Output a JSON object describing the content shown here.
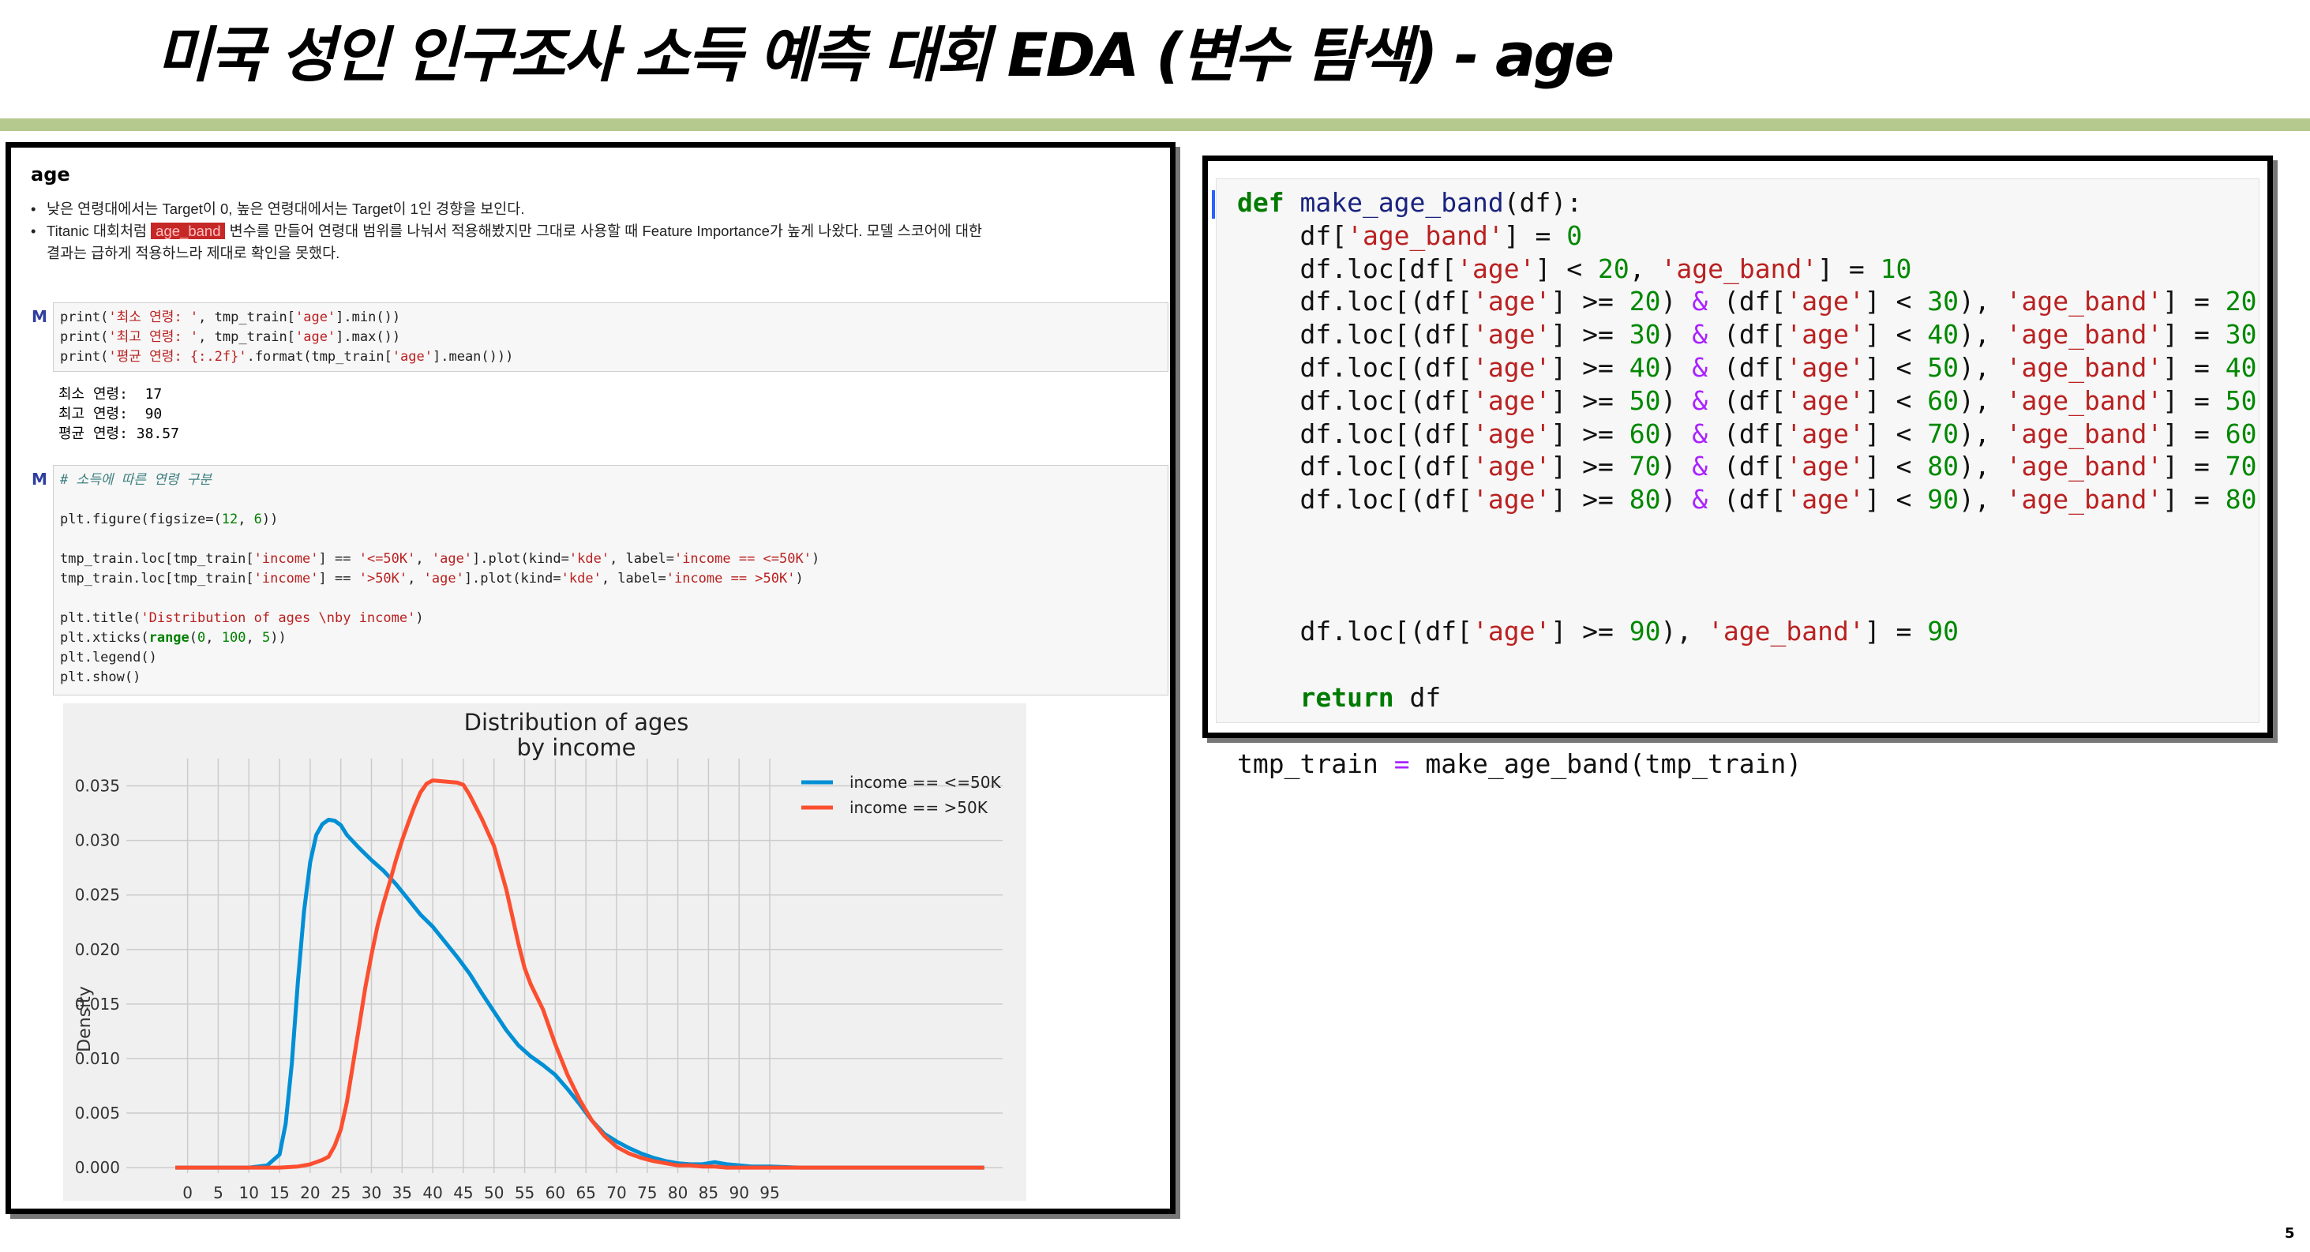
{
  "slide": {
    "title": "미국 성인 인구조사 소득 예측 대회 EDA (변수 탐색) - age",
    "page_number": "5",
    "accent_color": "#b5c98f"
  },
  "notebook": {
    "heading": "age",
    "bullets": {
      "b1": "낮은 연령대에서는 Target이 0, 높은 연령대에서는 Target이 1인 경향을 보인다.",
      "b2_pre": "Titanic 대회처럼 ",
      "b2_tag": "age_band",
      "b2_post": " 변수를 만들어 연령대 범위를 나눠서 적용해봤지만 그대로 사용할 때 Feature Importance가 높게 나왔다. 모델 스코어에 대한",
      "b2_cont": "결과는 급하게 적용하느라 제대로 확인을 못했다."
    },
    "cell1": {
      "prompt": "M",
      "l1_a": "print(",
      "l1_s": "'최소 연령: '",
      "l1_b": ", tmp_train[",
      "l1_k": "'age'",
      "l1_c": "].min())",
      "l2_a": "print(",
      "l2_s": "'최고 연령: '",
      "l2_b": ", tmp_train[",
      "l2_k": "'age'",
      "l2_c": "].max())",
      "l3_a": "print(",
      "l3_s": "'평균 연령: {:.2f}'",
      "l3_b": ".format(tmp_train[",
      "l3_k": "'age'",
      "l3_c": "].mean()))"
    },
    "output1": {
      "l1": "최소 연령:  17",
      "l2": "최고 연령:  90",
      "l3": "평균 연령: 38.57"
    },
    "cell2": {
      "prompt": "M",
      "comment": "# 소득에 따른 연령 구분",
      "fig_a": "plt.figure(figsize=(",
      "fig_n1": "12",
      "fig_b": ", ",
      "fig_n2": "6",
      "fig_c": "))",
      "loc1_a": "tmp_train.loc[tmp_train[",
      "loc1_s1": "'income'",
      "loc1_b": "] == ",
      "loc1_s2": "'<=50K'",
      "loc1_c": ", ",
      "loc1_s3": "'age'",
      "loc1_d": "].plot(kind=",
      "loc1_s4": "'kde'",
      "loc1_e": ", label=",
      "loc1_s5": "'income == <=50K'",
      "loc1_f": ")",
      "loc2_a": "tmp_train.loc[tmp_train[",
      "loc2_s1": "'income'",
      "loc2_b": "] == ",
      "loc2_s2": "'>50K'",
      "loc2_c": ", ",
      "loc2_s3": "'age'",
      "loc2_d": "].plot(kind=",
      "loc2_s4": "'kde'",
      "loc2_e": ", label=",
      "loc2_s5": "'income == >50K'",
      "loc2_f": ")",
      "title_a": "plt.title(",
      "title_s": "'Distribution of ages \\nby income'",
      "title_b": ")",
      "xt_a": "plt.xticks(",
      "xt_kw": "range",
      "xt_b": "(",
      "xt_n1": "0",
      "xt_c": ", ",
      "xt_n2": "100",
      "xt_d": ", ",
      "xt_n3": "5",
      "xt_e": "))",
      "legend": "plt.legend()",
      "show": "plt.show()"
    }
  },
  "chart_data": {
    "type": "line",
    "title": "Distribution of ages\nby income",
    "title_line1": "Distribution of ages",
    "title_line2": "by income",
    "ylabel": "Density",
    "xlim": [
      -10,
      133
    ],
    "ylim": [
      -0.0005,
      0.0375
    ],
    "xticks": [
      0,
      5,
      10,
      15,
      20,
      25,
      30,
      35,
      40,
      45,
      50,
      55,
      60,
      65,
      70,
      75,
      80,
      85,
      90,
      95
    ],
    "yticks": [
      "0.000",
      "0.005",
      "0.010",
      "0.015",
      "0.020",
      "0.025",
      "0.030",
      "0.035"
    ],
    "ytick_values": [
      0,
      0.005,
      0.01,
      0.015,
      0.02,
      0.025,
      0.03,
      0.035
    ],
    "grid": true,
    "legend_position": "top-right",
    "series": [
      {
        "name": "income == <=50K",
        "color": "#008fd5",
        "x": [
          -2,
          5,
          10,
          13,
          15,
          16,
          17,
          18,
          19,
          20,
          21,
          22,
          23,
          24,
          25,
          26,
          28,
          30,
          32,
          34,
          36,
          38,
          40,
          42,
          44,
          46,
          48,
          50,
          52,
          54,
          56,
          58,
          60,
          62,
          64,
          66,
          68,
          70,
          72,
          74,
          76,
          78,
          80,
          82,
          84,
          86,
          88,
          90,
          92,
          95,
          100,
          110,
          120,
          130
        ],
        "y": [
          0,
          0,
          0,
          0.0002,
          0.0012,
          0.004,
          0.0095,
          0.017,
          0.0235,
          0.028,
          0.0305,
          0.0315,
          0.0319,
          0.0318,
          0.0314,
          0.0305,
          0.0293,
          0.0282,
          0.0272,
          0.026,
          0.0246,
          0.0232,
          0.0221,
          0.0207,
          0.0193,
          0.0178,
          0.016,
          0.0143,
          0.0126,
          0.0112,
          0.0102,
          0.0094,
          0.0085,
          0.0072,
          0.0058,
          0.0043,
          0.0031,
          0.0024,
          0.0018,
          0.0013,
          0.0009,
          0.0006,
          0.0004,
          0.0003,
          0.0003,
          0.0005,
          0.0003,
          0.0002,
          0.0001,
          0.0001,
          0,
          0,
          0,
          0
        ]
      },
      {
        "name": "income == >50K",
        "color": "#fc4f30",
        "x": [
          -2,
          5,
          10,
          15,
          18,
          19,
          20,
          21,
          22,
          23,
          24,
          25,
          26,
          27,
          28,
          29,
          30,
          31,
          32,
          33,
          34,
          35,
          36,
          37,
          38,
          39,
          40,
          42,
          44,
          45,
          46,
          48,
          50,
          52,
          54,
          55,
          56,
          58,
          60,
          62,
          64,
          66,
          68,
          70,
          72,
          74,
          76,
          78,
          80,
          82,
          84,
          86,
          88,
          90,
          92,
          95,
          100,
          110,
          120,
          130
        ],
        "y": [
          0,
          0,
          0,
          0,
          0.0001,
          0.0002,
          0.0003,
          0.0005,
          0.0007,
          0.001,
          0.002,
          0.0035,
          0.006,
          0.0095,
          0.013,
          0.0165,
          0.0195,
          0.0222,
          0.0243,
          0.0262,
          0.0282,
          0.03,
          0.0316,
          0.0331,
          0.0344,
          0.0352,
          0.0355,
          0.0354,
          0.0353,
          0.0351,
          0.0342,
          0.032,
          0.0295,
          0.0255,
          0.0205,
          0.0183,
          0.0168,
          0.0145,
          0.0113,
          0.0085,
          0.0062,
          0.0043,
          0.0029,
          0.0019,
          0.0013,
          0.0009,
          0.0006,
          0.0004,
          0.0002,
          0.0002,
          0.0001,
          0.0001,
          0,
          0,
          0,
          0,
          0,
          0,
          0,
          0
        ]
      }
    ]
  },
  "code_panel": {
    "l1_kw": "def",
    "l1_fn": " make_age_band",
    "l1_rest": "(df):",
    "l2_a": "    df[",
    "l2_s": "'age_band'",
    "l2_op": "] = ",
    "l2_n": "0",
    "l3_a": "    df.loc[df[",
    "l3_s1": "'age'",
    "l3_op": "] < ",
    "l3_n1": "20",
    "l3_b": ", ",
    "l3_s2": "'age_band'",
    "l3_c": "] = ",
    "l3_n2": "10",
    "rows": [
      {
        "lo": "20",
        "hi": "30",
        "val": "20"
      },
      {
        "lo": "30",
        "hi": "40",
        "val": "30"
      },
      {
        "lo": "40",
        "hi": "50",
        "val": "40"
      },
      {
        "lo": "50",
        "hi": "60",
        "val": "50"
      },
      {
        "lo": "60",
        "hi": "70",
        "val": "60"
      },
      {
        "lo": "70",
        "hi": "80",
        "val": "70"
      },
      {
        "lo": "80",
        "hi": "90",
        "val": "80"
      }
    ],
    "row_pre": "    df.loc[(df[",
    "row_age": "'age'",
    "row_ge": "] >= ",
    "row_mid": ") ",
    "row_and": "&",
    "row_mid2": " (df[",
    "row_lt": "] < ",
    "row_mid3": "), ",
    "row_band": "'age_band'",
    "row_eq": "] = ",
    "l11_a": "    df.loc[(df[",
    "l11_s1": "'age'",
    "l11_op": "] >= ",
    "l11_n1": "90",
    "l11_b": "), ",
    "l11_s2": "'age_band'",
    "l11_c": "] = ",
    "l11_n2": "90",
    "l13_kw": "    return",
    "l13_rest": " df",
    "l15_a": "tmp_train ",
    "l15_op": "=",
    "l15_b": " make_age_band(tmp_train)"
  }
}
